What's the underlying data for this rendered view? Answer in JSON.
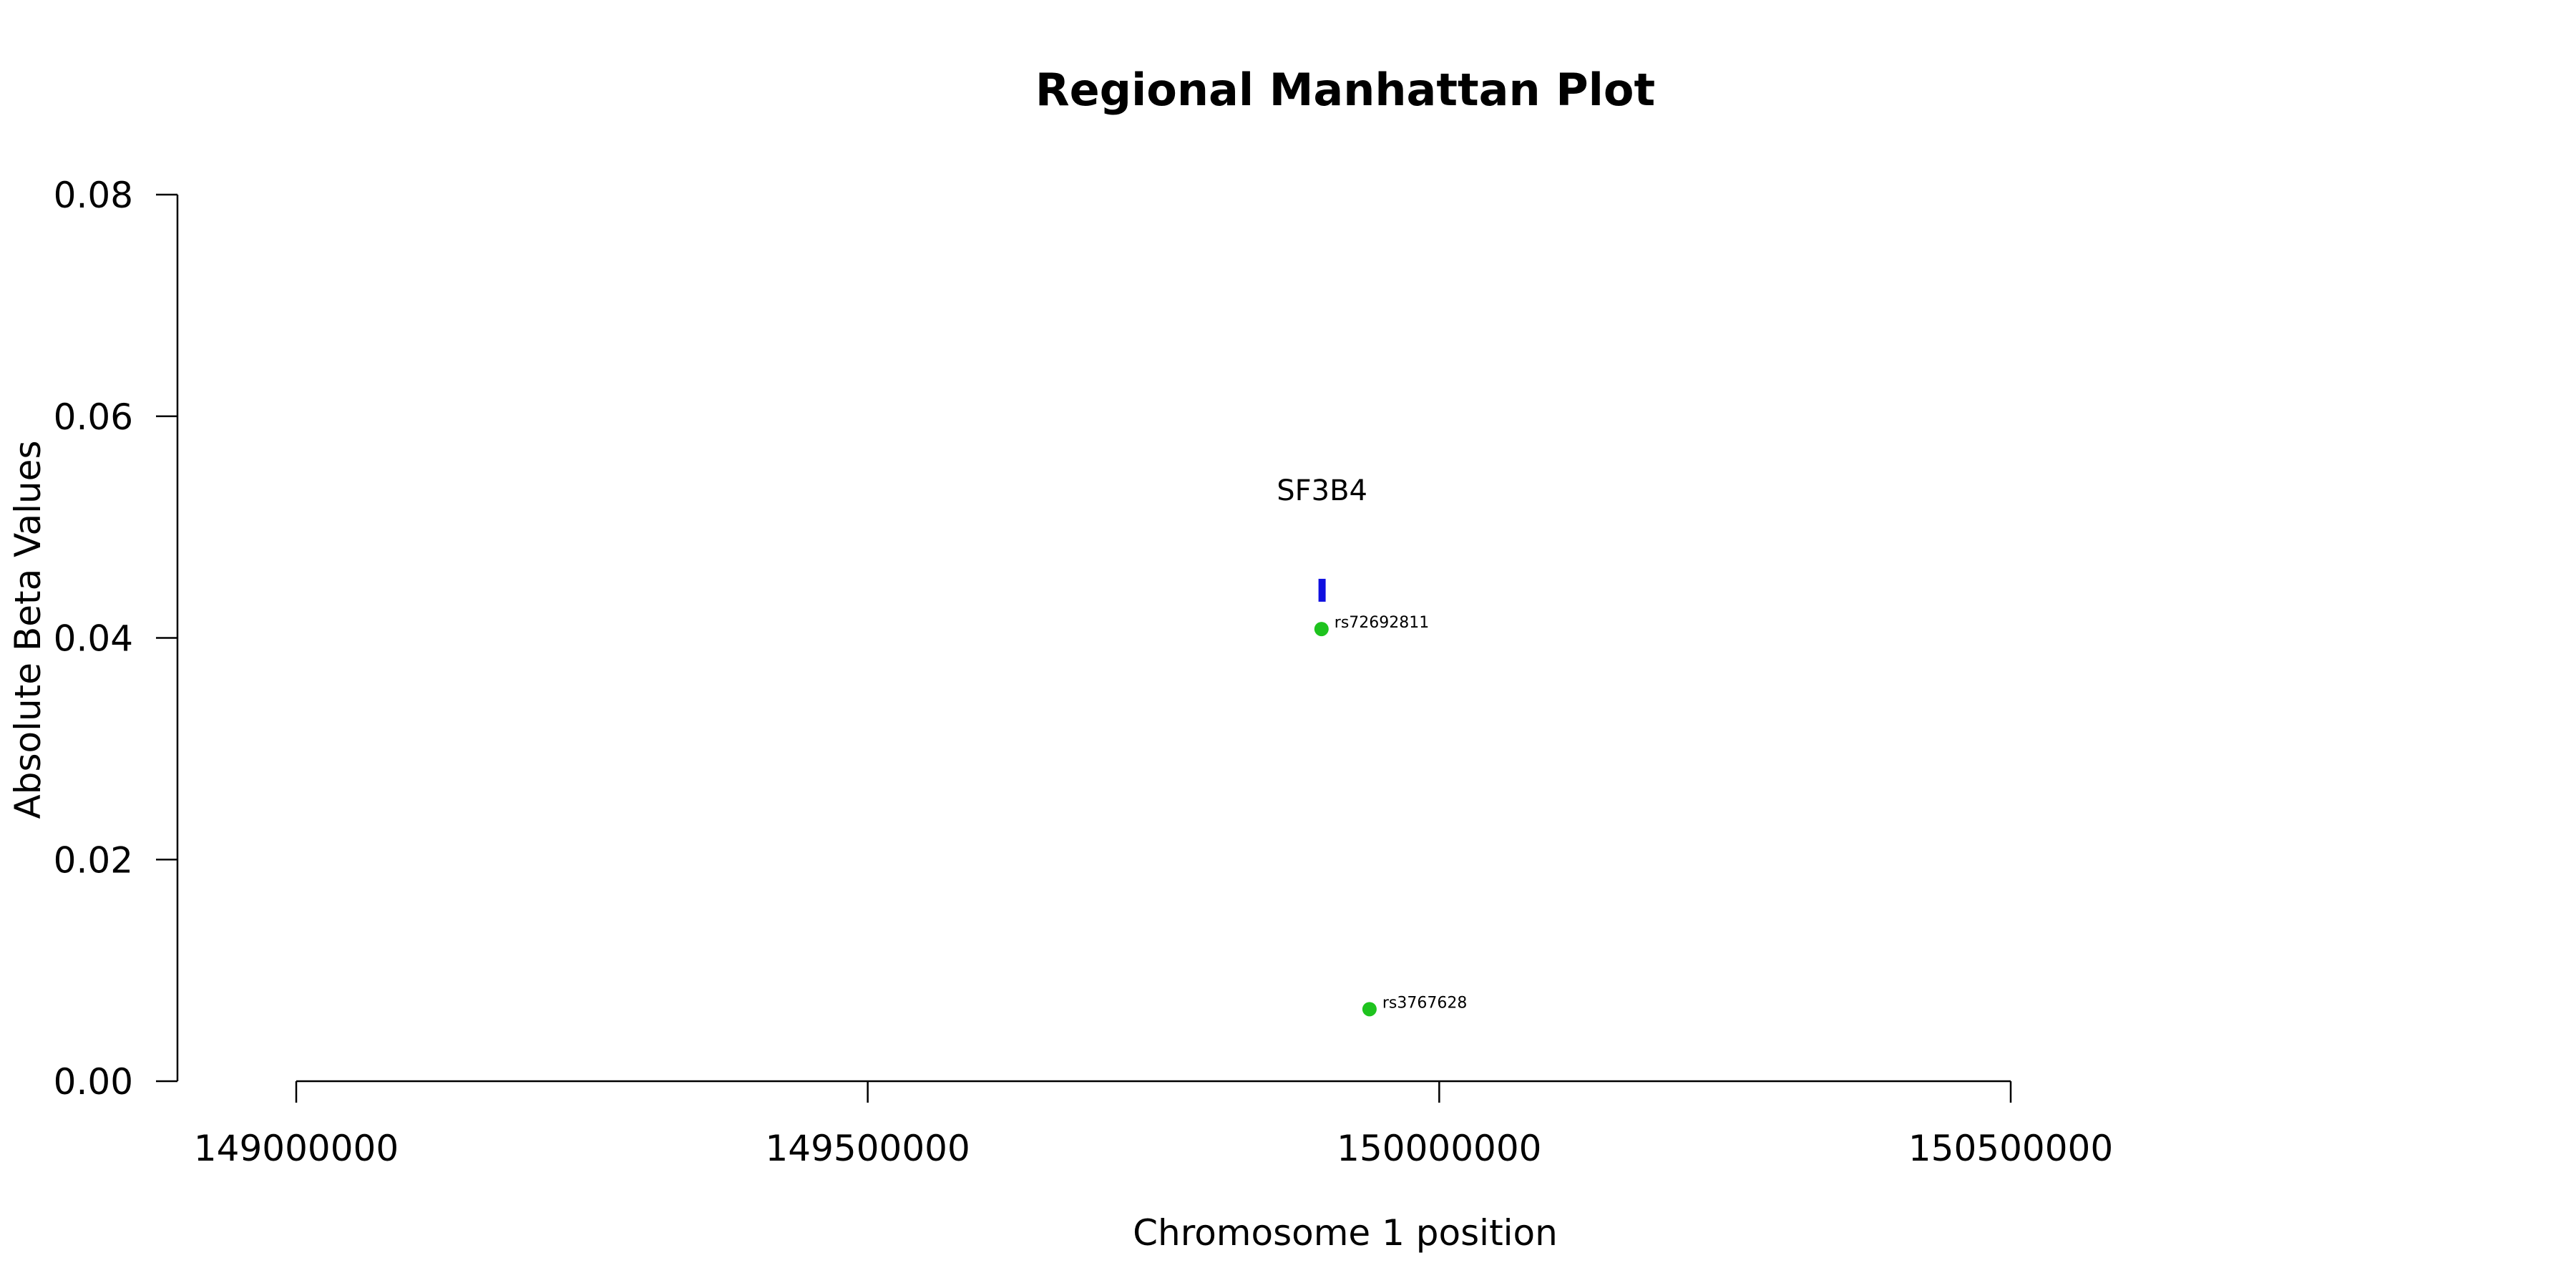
{
  "chart_data": {
    "type": "scatter",
    "title": "Regional Manhattan Plot",
    "xlabel": "Chromosome 1 position",
    "ylabel": "Absolute Beta Values",
    "xlim": [
      149000000,
      150500000
    ],
    "ylim": [
      0,
      0.08
    ],
    "x_ticks": [
      149000000,
      149500000,
      150000000,
      150500000
    ],
    "x_tick_labels": [
      "149000000",
      "149500000",
      "150000000",
      "150500000"
    ],
    "y_ticks": [
      0,
      0.02,
      0.04,
      0.06,
      0.08
    ],
    "y_tick_labels": [
      "0.00",
      "0.02",
      "0.04",
      "0.06",
      "0.08"
    ],
    "grid": false,
    "points": [
      {
        "label": "rs72692811",
        "x": 149897000,
        "y": 0.0408,
        "color": "#1ec31e"
      },
      {
        "label": "rs3767628",
        "x": 149939000,
        "y": 0.0065,
        "color": "#1ec31e"
      }
    ],
    "genes": [
      {
        "name": "SF3B4",
        "start": 149895000,
        "end": 149900000,
        "y": 0.0443,
        "color": "#1010e0"
      }
    ]
  }
}
